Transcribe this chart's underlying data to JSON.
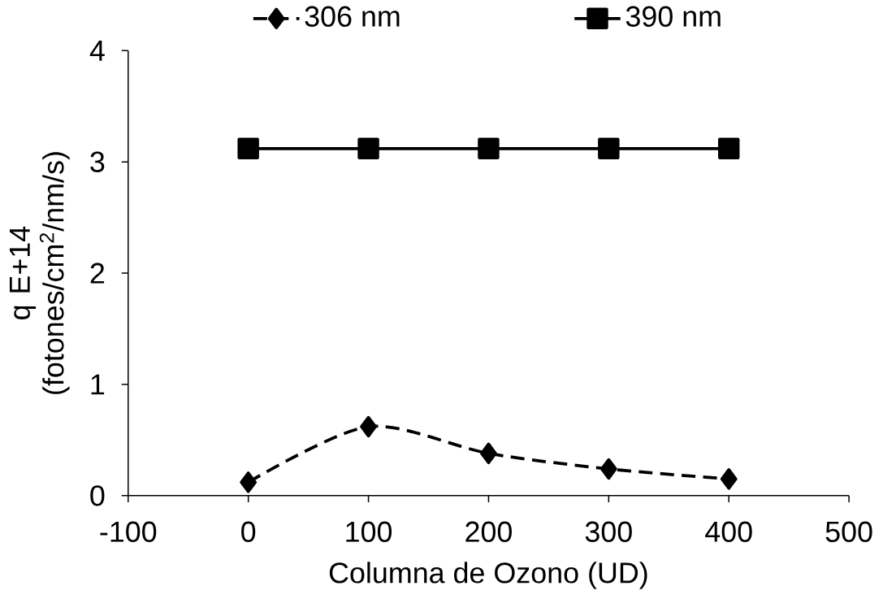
{
  "chart_data": {
    "type": "line",
    "xlabel": "Columna de Ozono (UD)",
    "ylabel": "q E+14 (fotones/cm$^{2}$/nm/s)",
    "x": [
      0,
      100,
      200,
      300,
      400
    ],
    "series": [
      {
        "name": "306 nm",
        "color": "#000000",
        "values": [
          0.12,
          0.62,
          0.38,
          0.24,
          0.15
        ],
        "marker": "diamond",
        "line_style": "dashed"
      },
      {
        "name": "390 nm",
        "color": "#000000",
        "values": [
          3.12,
          3.12,
          3.12,
          3.12,
          3.12
        ],
        "marker": "square",
        "line_style": "solid"
      }
    ],
    "xlim": [
      -100,
      500
    ],
    "xticks": [
      -100,
      0,
      100,
      200,
      300,
      400,
      500
    ],
    "ylim": [
      0,
      4
    ],
    "yticks": [
      0,
      1,
      2,
      3,
      4
    ],
    "grid": false,
    "legend": "top"
  }
}
